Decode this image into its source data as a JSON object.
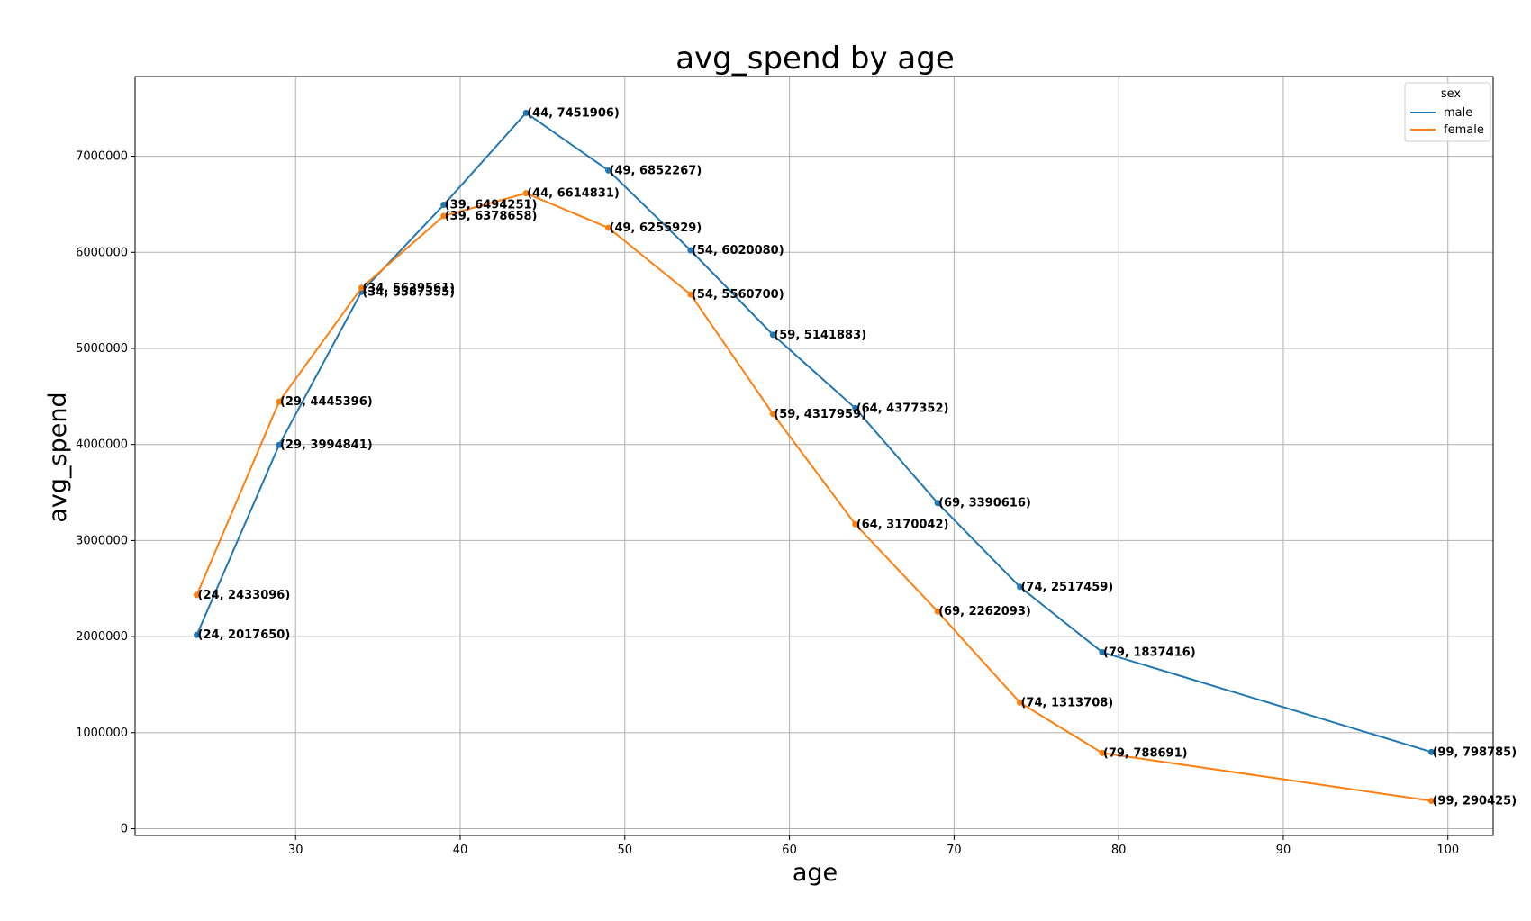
{
  "chart_data": {
    "type": "line",
    "title": "avg_spend by age",
    "xlabel": "age",
    "ylabel": "avg_spend",
    "xlim": [
      20.25,
      102.75
    ],
    "ylim": [
      -70000,
      7830000
    ],
    "xticks": [
      30,
      40,
      50,
      60,
      70,
      80,
      90,
      100
    ],
    "yticks": [
      0,
      1000000,
      2000000,
      3000000,
      4000000,
      5000000,
      6000000,
      7000000
    ],
    "grid": true,
    "legend": {
      "title": "sex",
      "placement": "top-right"
    },
    "series": [
      {
        "name": "male",
        "color": "#1f77b4",
        "x": [
          24,
          29,
          34,
          39,
          44,
          49,
          54,
          59,
          64,
          69,
          74,
          79,
          99
        ],
        "y": [
          2017650,
          3994841,
          5587355,
          6494251,
          7451906,
          6852267,
          6020080,
          5141883,
          4377352,
          3390616,
          2517459,
          1837416,
          798785
        ]
      },
      {
        "name": "female",
        "color": "#ff7f0e",
        "x": [
          24,
          29,
          34,
          39,
          44,
          49,
          54,
          59,
          64,
          69,
          74,
          79,
          99
        ],
        "y": [
          2433096,
          4445396,
          5629561,
          6378658,
          6614831,
          6255929,
          5560700,
          4317959,
          3170042,
          2262093,
          1313708,
          788691,
          290425
        ]
      }
    ]
  }
}
